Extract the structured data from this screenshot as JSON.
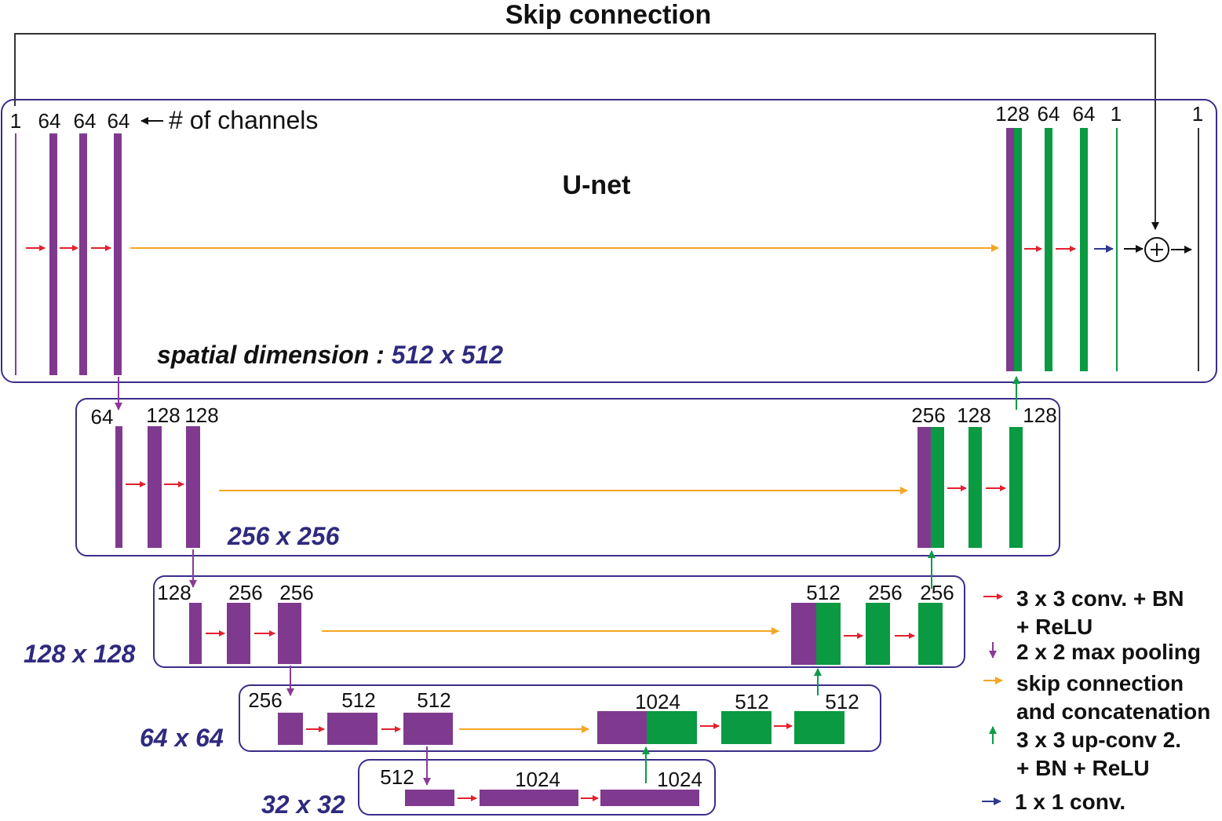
{
  "skip_title": "Skip connection",
  "unet_title": "U-net",
  "channels_note": "# of channels",
  "levels": {
    "l1": {
      "enc": [
        "1",
        "64",
        "64",
        "64"
      ],
      "dec": [
        "128",
        "64",
        "64",
        "1",
        "1"
      ],
      "dim_prefix": "spatial dimension : ",
      "dim": "512 x 512"
    },
    "l2": {
      "enc": [
        "64",
        "128",
        "128"
      ],
      "dec": [
        "256",
        "128",
        "128"
      ],
      "dim": "256 x 256"
    },
    "l3": {
      "enc": [
        "128",
        "256",
        "256"
      ],
      "dec": [
        "512",
        "256",
        "256"
      ],
      "dim": "128 x 128"
    },
    "l4": {
      "enc": [
        "256",
        "512",
        "512"
      ],
      "dec": [
        "1024",
        "512",
        "512"
      ],
      "dim": "64 x 64"
    },
    "l5": {
      "enc": [
        "512",
        "1024",
        "1024"
      ],
      "dim": "32 x 32"
    }
  },
  "legend": [
    {
      "color": "#e3202e",
      "lines": [
        "3 x 3 conv. + BN",
        "+ ReLU"
      ]
    },
    {
      "color": "#8a3b96",
      "lines": [
        "2 x 2 max pooling"
      ]
    },
    {
      "color": "#f5a623",
      "lines": [
        "skip connection",
        "and concatenation"
      ]
    },
    {
      "color": "#0d9b47",
      "lines": [
        "3 x 3 up-conv 2.",
        "+ BN + ReLU"
      ]
    },
    {
      "color": "#2e3a8c",
      "lines": [
        "1 x 1 conv."
      ]
    }
  ],
  "colors": {
    "purple": "#7f3a8f",
    "green": "#0a9a41",
    "red": "#e3202e",
    "orange": "#f5a623",
    "blue": "#2e3a8c",
    "dim_text": "#2e2a7e",
    "frame": "#3a2e8a"
  }
}
